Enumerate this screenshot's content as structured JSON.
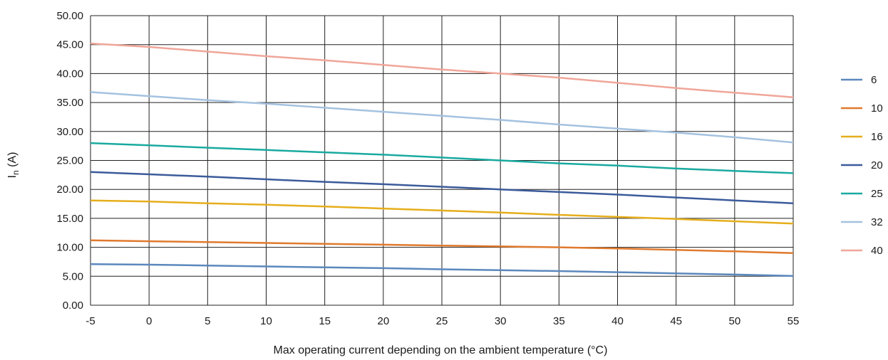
{
  "chart_data": {
    "type": "line",
    "xlabel": "Max operating current depending on the ambient temperature (°C)",
    "ylabel_main": "I",
    "ylabel_sub": "n",
    "ylabel_unit": " (A)",
    "x": [
      -5,
      0,
      5,
      10,
      15,
      20,
      25,
      30,
      35,
      40,
      45,
      50,
      55
    ],
    "xlim": [
      -5,
      55
    ],
    "ylim": [
      0,
      50
    ],
    "y_ticks": [
      "0.00",
      "5.00",
      "10.00",
      "15.00",
      "20.00",
      "25.00",
      "30.00",
      "35.00",
      "40.00",
      "45.00",
      "50.00"
    ],
    "x_ticks": [
      "-5",
      "0",
      "5",
      "10",
      "15",
      "20",
      "25",
      "30",
      "35",
      "40",
      "45",
      "50",
      "55"
    ],
    "grid": true,
    "legend_position": "right",
    "series": [
      {
        "name": "6",
        "color": "#5b88bd",
        "values": [
          7.1,
          7.0,
          6.85,
          6.7,
          6.55,
          6.4,
          6.2,
          6.05,
          5.9,
          5.7,
          5.5,
          5.3,
          5.05
        ]
      },
      {
        "name": "10",
        "color": "#e07a2e",
        "values": [
          11.2,
          11.05,
          10.9,
          10.75,
          10.6,
          10.45,
          10.3,
          10.15,
          10.0,
          9.8,
          9.55,
          9.3,
          9.0
        ]
      },
      {
        "name": "16",
        "color": "#e6ae1c",
        "values": [
          18.1,
          17.9,
          17.6,
          17.35,
          17.05,
          16.7,
          16.35,
          16.0,
          15.6,
          15.25,
          14.9,
          14.5,
          14.1
        ]
      },
      {
        "name": "20",
        "color": "#3c5b9b",
        "values": [
          23.0,
          22.6,
          22.2,
          21.75,
          21.3,
          20.9,
          20.45,
          20.0,
          19.55,
          19.1,
          18.6,
          18.1,
          17.6
        ]
      },
      {
        "name": "25",
        "color": "#1aaaa0",
        "values": [
          28.0,
          27.6,
          27.2,
          26.8,
          26.4,
          26.0,
          25.5,
          25.0,
          24.5,
          24.1,
          23.6,
          23.2,
          22.8
        ]
      },
      {
        "name": "32",
        "color": "#a4c2e0",
        "values": [
          36.8,
          36.1,
          35.4,
          34.8,
          34.1,
          33.4,
          32.7,
          32.0,
          31.2,
          30.5,
          29.8,
          29.0,
          28.1
        ]
      },
      {
        "name": "40",
        "color": "#f0a699",
        "values": [
          45.2,
          44.6,
          43.8,
          43.0,
          42.3,
          41.5,
          40.7,
          40.0,
          39.3,
          38.4,
          37.5,
          36.7,
          35.9
        ]
      }
    ]
  }
}
